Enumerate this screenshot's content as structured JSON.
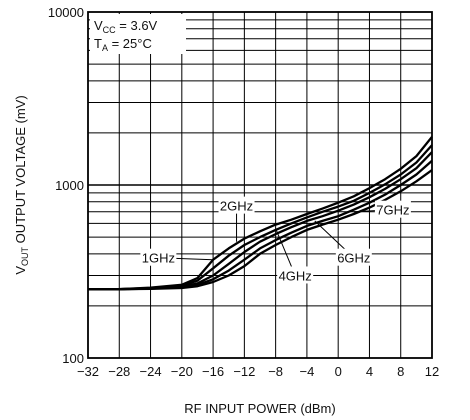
{
  "chart_data": {
    "type": "line",
    "title": "",
    "xlabel": "RF INPUT POWER (dBm)",
    "ylabel": {
      "pre": "V",
      "sub": "OUT",
      "post": " OUTPUT VOLTAGE (mV)"
    },
    "xlim": [
      -32,
      12
    ],
    "ylim": [
      100,
      10000
    ],
    "yscale": "log",
    "grid": true,
    "x_ticks": [
      -32,
      -28,
      -24,
      -20,
      -16,
      -12,
      -8,
      -4,
      0,
      4,
      8,
      12
    ],
    "x_tick_labels": [
      "−32",
      "−28",
      "−24",
      "−20",
      "−16",
      "−12",
      "−8",
      "−4",
      "0",
      "4",
      "8",
      "12"
    ],
    "y_ticks": [
      100,
      1000,
      10000
    ],
    "y_tick_labels": [
      "100",
      "1000",
      "10000"
    ],
    "conditions": {
      "vcc": {
        "pre": "V",
        "sub": "CC",
        "post": " = 3.6V"
      },
      "ta": {
        "pre": "T",
        "sub": "A",
        "post": " = 25°C"
      }
    },
    "series": [
      {
        "name": "1GHz",
        "x": [
          -32,
          -28,
          -24,
          -20,
          -18,
          -16,
          -14,
          -12,
          -10,
          -8,
          -6,
          -4,
          -2,
          0,
          2,
          4,
          6,
          8,
          10,
          12
        ],
        "values": [
          250,
          250,
          255,
          265,
          290,
          370,
          430,
          490,
          540,
          590,
          630,
          680,
          730,
          790,
          860,
          960,
          1080,
          1240,
          1470,
          1900
        ]
      },
      {
        "name": "2GHz",
        "x": [
          -32,
          -28,
          -24,
          -20,
          -18,
          -16,
          -14,
          -12,
          -10,
          -8,
          -6,
          -4,
          -2,
          0,
          2,
          4,
          6,
          8,
          10,
          12
        ],
        "values": [
          250,
          250,
          254,
          262,
          280,
          330,
          390,
          450,
          500,
          550,
          600,
          650,
          700,
          750,
          810,
          900,
          1010,
          1150,
          1350,
          1700
        ]
      },
      {
        "name": "4GHz",
        "x": [
          -32,
          -28,
          -24,
          -20,
          -18,
          -16,
          -14,
          -12,
          -10,
          -8,
          -6,
          -4,
          -2,
          0,
          2,
          4,
          6,
          8,
          10,
          12
        ],
        "values": [
          250,
          250,
          253,
          258,
          270,
          300,
          350,
          410,
          470,
          520,
          570,
          620,
          660,
          710,
          770,
          850,
          950,
          1080,
          1250,
          1550
        ]
      },
      {
        "name": "6GHz",
        "x": [
          -32,
          -28,
          -24,
          -20,
          -18,
          -16,
          -14,
          -12,
          -10,
          -8,
          -6,
          -4,
          -2,
          0,
          2,
          4,
          6,
          8,
          10,
          12
        ],
        "values": [
          250,
          250,
          252,
          256,
          265,
          285,
          320,
          370,
          430,
          480,
          530,
          580,
          620,
          660,
          720,
          790,
          880,
          1000,
          1150,
          1380
        ]
      },
      {
        "name": "7GHz",
        "x": [
          -32,
          -28,
          -24,
          -20,
          -18,
          -16,
          -14,
          -12,
          -10,
          -8,
          -6,
          -4,
          -2,
          0,
          2,
          4,
          6,
          8,
          10,
          12
        ],
        "values": [
          250,
          250,
          251,
          254,
          260,
          275,
          300,
          340,
          400,
          450,
          500,
          550,
          590,
          630,
          680,
          740,
          820,
          920,
          1050,
          1220
        ]
      }
    ],
    "annotations": [
      "1GHz",
      "2GHz",
      "4GHz",
      "6GHz",
      "7GHz"
    ]
  }
}
